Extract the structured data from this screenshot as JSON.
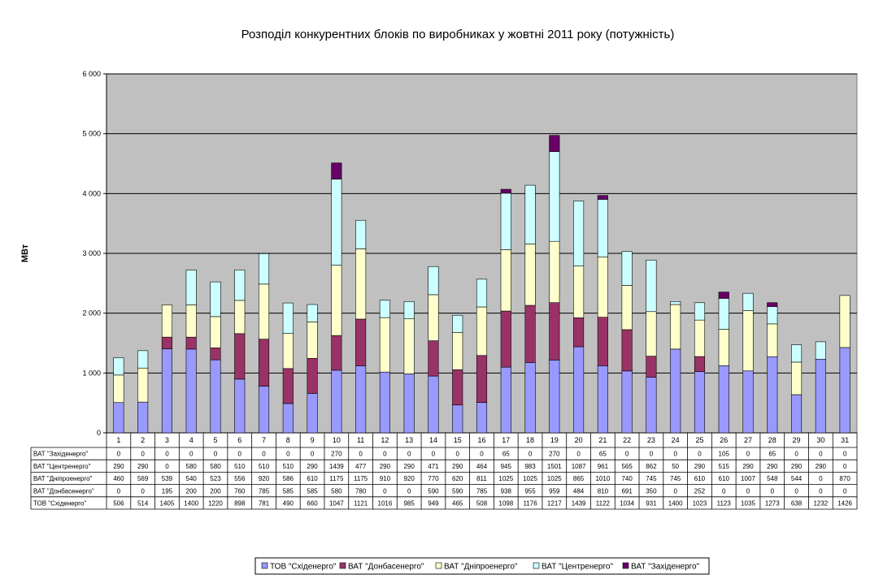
{
  "chart_data": {
    "type": "bar",
    "stacked": true,
    "title": "Розподіл конкурентних блоків по виробниках у жовтні 2011 року (потужність)",
    "ylabel": "МВт",
    "xlabel": "",
    "ylim": [
      0,
      6000
    ],
    "yticks": [
      "0",
      "1 000",
      "2 000",
      "3 000",
      "4 000",
      "5 000",
      "6 000"
    ],
    "ytick_values": [
      0,
      1000,
      2000,
      3000,
      4000,
      5000,
      6000
    ],
    "grid": true,
    "legend_position": "bottom",
    "plot_background": "#c0c0c0",
    "categories": [
      "1",
      "2",
      "3",
      "4",
      "5",
      "6",
      "7",
      "8",
      "9",
      "10",
      "11",
      "12",
      "13",
      "14",
      "15",
      "16",
      "17",
      "18",
      "19",
      "20",
      "21",
      "22",
      "23",
      "24",
      "25",
      "26",
      "27",
      "28",
      "29",
      "30",
      "31"
    ],
    "series": [
      {
        "name": "ТОВ \"Східенерго\"",
        "color": "#9999ff",
        "values": [
          506,
          514,
          1405,
          1400,
          1220,
          898,
          781,
          490,
          660,
          1047,
          1121,
          1016,
          985,
          949,
          465,
          508,
          1098,
          1176,
          1217,
          1439,
          1122,
          1034,
          931,
          1400,
          1023,
          1123,
          1035,
          1273,
          638,
          1232,
          1426
        ]
      },
      {
        "name": "ВАТ \"Донбасенерго\"",
        "color": "#993366",
        "values": [
          0,
          0,
          195,
          200,
          200,
          760,
          785,
          585,
          585,
          580,
          780,
          0,
          0,
          590,
          590,
          785,
          938,
          955,
          959,
          484,
          810,
          691,
          350,
          0,
          252,
          0,
          0,
          0,
          0,
          0,
          0
        ]
      },
      {
        "name": "ВАТ \"Дніпроенерго\"",
        "color": "#ffffcc",
        "values": [
          460,
          569,
          539,
          540,
          523,
          556,
          920,
          586,
          610,
          1175,
          1175,
          910,
          920,
          770,
          620,
          811,
          1025,
          1025,
          1025,
          865,
          1010,
          740,
          745,
          745,
          610,
          610,
          1007,
          548,
          544,
          0,
          870
        ]
      },
      {
        "name": "ВАТ \"Центренерго\"",
        "color": "#ccffff",
        "values": [
          290,
          290,
          0,
          580,
          580,
          510,
          510,
          510,
          290,
          1439,
          477,
          290,
          290,
          471,
          290,
          464,
          945,
          983,
          1501,
          1087,
          961,
          565,
          862,
          50,
          290,
          515,
          290,
          290,
          290,
          290,
          0
        ]
      },
      {
        "name": "ВАТ \"Західенерго\"",
        "color": "#660066",
        "values": [
          0,
          0,
          0,
          0,
          0,
          0,
          0,
          0,
          0,
          270,
          0,
          0,
          0,
          0,
          0,
          0,
          65,
          0,
          270,
          0,
          65,
          0,
          0,
          0,
          0,
          105,
          0,
          65,
          0,
          0,
          0
        ]
      }
    ],
    "table_rows_top_to_bottom": [
      4,
      3,
      2,
      1,
      0
    ],
    "legend_order": [
      0,
      1,
      2,
      3,
      4
    ]
  }
}
